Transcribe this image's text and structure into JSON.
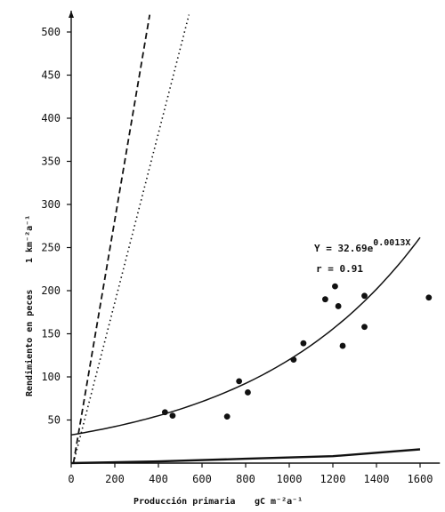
{
  "chart_data": {
    "type": "scatter",
    "xlim": [
      0,
      1650
    ],
    "ylim": [
      0,
      520
    ],
    "x_ticks": [
      0,
      200,
      400,
      600,
      800,
      1000,
      1200,
      1400,
      1600
    ],
    "y_ticks": [
      50,
      100,
      150,
      200,
      250,
      300,
      350,
      400,
      450,
      500
    ],
    "x_tick_labels": [
      "0",
      "200",
      "400",
      "600",
      "800",
      "1000",
      "1200",
      "1400",
      "1600"
    ],
    "y_tick_labels": [
      "50",
      "100",
      "150",
      "200",
      "250",
      "300",
      "350",
      "400",
      "450",
      "500"
    ],
    "xlabel": "Producción primaria",
    "xlabel_unit": "gC m⁻²a⁻¹",
    "ylabel": "Rendimiento en peces",
    "ylabel_unit": "1 km⁻²a⁻¹",
    "equation": "Y = 32.69e",
    "equation_exp": "0.0013X",
    "r_label": "r = 0.91",
    "grid": false,
    "points": [
      {
        "x": 430,
        "y": 59
      },
      {
        "x": 465,
        "y": 55
      },
      {
        "x": 715,
        "y": 54
      },
      {
        "x": 770,
        "y": 95
      },
      {
        "x": 810,
        "y": 82
      },
      {
        "x": 1020,
        "y": 120
      },
      {
        "x": 1065,
        "y": 139
      },
      {
        "x": 1165,
        "y": 190
      },
      {
        "x": 1210,
        "y": 205
      },
      {
        "x": 1225,
        "y": 182
      },
      {
        "x": 1245,
        "y": 136
      },
      {
        "x": 1345,
        "y": 194
      },
      {
        "x": 1345,
        "y": 158
      },
      {
        "x": 1640,
        "y": 192
      }
    ],
    "lines": [
      {
        "style": "solid",
        "kind": "exponential",
        "a": 32.69,
        "b": 0.0013,
        "x_range": [
          0,
          1600
        ]
      },
      {
        "style": "dashed",
        "kind": "linear",
        "points": [
          [
            10,
            0
          ],
          [
            360,
            520
          ]
        ]
      },
      {
        "style": "dotted",
        "kind": "linear",
        "points": [
          [
            10,
            0
          ],
          [
            540,
            520
          ]
        ]
      },
      {
        "style": "solid",
        "kind": "polyline",
        "points": [
          [
            0,
            0
          ],
          [
            400,
            2
          ],
          [
            800,
            5
          ],
          [
            1200,
            8
          ],
          [
            1600,
            16
          ]
        ]
      }
    ]
  }
}
